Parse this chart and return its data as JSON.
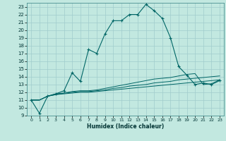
{
  "title": "",
  "xlabel": "Humidex (Indice chaleur)",
  "bg_color": "#c2e8e0",
  "grid_color": "#a0cccc",
  "line_color": "#006666",
  "xlim": [
    -0.5,
    23.5
  ],
  "ylim": [
    9,
    23.5
  ],
  "xticks": [
    0,
    1,
    2,
    3,
    4,
    5,
    6,
    7,
    8,
    9,
    10,
    11,
    12,
    13,
    14,
    15,
    16,
    17,
    18,
    19,
    20,
    21,
    22,
    23
  ],
  "yticks": [
    9,
    10,
    11,
    12,
    13,
    14,
    15,
    16,
    17,
    18,
    19,
    20,
    21,
    22,
    23
  ],
  "main_x": [
    0,
    1,
    2,
    3,
    4,
    5,
    6,
    7,
    8,
    9,
    10,
    11,
    12,
    13,
    14,
    15,
    16,
    17,
    18,
    19,
    20,
    21,
    22,
    23
  ],
  "main_y": [
    11.0,
    9.3,
    11.5,
    11.8,
    12.2,
    14.5,
    13.4,
    17.5,
    17.0,
    19.5,
    21.2,
    21.2,
    22.0,
    22.0,
    23.3,
    22.5,
    21.5,
    19.0,
    15.3,
    14.2,
    13.0,
    13.2,
    13.0,
    13.5
  ],
  "reg1_x": [
    0,
    1,
    2,
    3,
    4,
    5,
    6,
    7,
    8,
    9,
    10,
    11,
    12,
    13,
    14,
    15,
    16,
    17,
    18,
    19,
    20,
    21,
    22,
    23
  ],
  "reg1_y": [
    11.0,
    11.0,
    11.5,
    11.7,
    11.8,
    11.9,
    12.0,
    12.0,
    12.1,
    12.2,
    12.3,
    12.4,
    12.5,
    12.6,
    12.7,
    12.8,
    12.9,
    13.0,
    13.1,
    13.2,
    13.3,
    13.4,
    13.5,
    13.6
  ],
  "reg2_x": [
    0,
    1,
    2,
    3,
    4,
    5,
    6,
    7,
    8,
    9,
    10,
    11,
    12,
    13,
    14,
    15,
    16,
    17,
    18,
    19,
    20,
    21,
    22,
    23
  ],
  "reg2_y": [
    11.0,
    11.0,
    11.5,
    11.7,
    11.9,
    12.0,
    12.1,
    12.1,
    12.2,
    12.3,
    12.5,
    12.6,
    12.8,
    12.9,
    13.0,
    13.2,
    13.3,
    13.4,
    13.6,
    13.7,
    13.8,
    13.9,
    14.0,
    14.1
  ],
  "reg3_x": [
    0,
    1,
    2,
    3,
    4,
    5,
    6,
    7,
    8,
    9,
    10,
    11,
    12,
    13,
    14,
    15,
    16,
    17,
    18,
    19,
    20,
    21,
    22,
    23
  ],
  "reg3_y": [
    11.0,
    11.0,
    11.5,
    11.8,
    11.9,
    12.1,
    12.2,
    12.2,
    12.3,
    12.5,
    12.7,
    12.9,
    13.1,
    13.3,
    13.5,
    13.7,
    13.8,
    13.9,
    14.1,
    14.3,
    14.4,
    13.0,
    13.1,
    13.6
  ]
}
